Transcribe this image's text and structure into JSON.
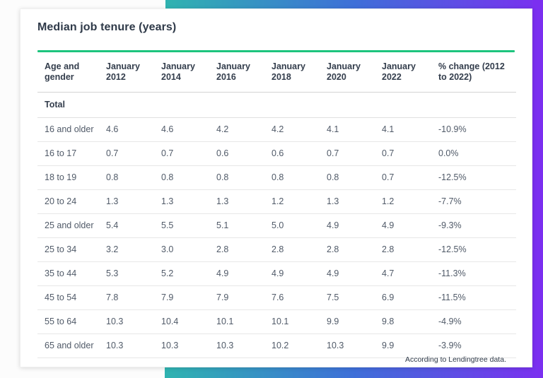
{
  "theme": {
    "gradient_start": "#2fb3b0",
    "gradient_mid": "#3e6fd8",
    "gradient_end": "#7b2ff0",
    "accent_green": "#1dc47e",
    "title_color": "#2f3a49",
    "body_text_color": "#505a68"
  },
  "chart_data": {
    "type": "table",
    "title": "Median job tenure (years)",
    "columns": [
      "Age and gender",
      "January 2012",
      "January 2014",
      "January 2016",
      "January 2018",
      "January 2020",
      "January 2022",
      "% change (2012 to 2022)"
    ],
    "section_label": "Total",
    "rows": [
      {
        "label": "16 and older",
        "values": [
          "4.6",
          "4.6",
          "4.2",
          "4.2",
          "4.1",
          "4.1",
          "-10.9%"
        ]
      },
      {
        "label": "16 to 17",
        "values": [
          "0.7",
          "0.7",
          "0.6",
          "0.6",
          "0.7",
          "0.7",
          "0.0%"
        ]
      },
      {
        "label": "18 to 19",
        "values": [
          "0.8",
          "0.8",
          "0.8",
          "0.8",
          "0.8",
          "0.7",
          "-12.5%"
        ]
      },
      {
        "label": "20 to 24",
        "values": [
          "1.3",
          "1.3",
          "1.3",
          "1.2",
          "1.3",
          "1.2",
          "-7.7%"
        ]
      },
      {
        "label": "25 and older",
        "values": [
          "5.4",
          "5.5",
          "5.1",
          "5.0",
          "4.9",
          "4.9",
          "-9.3%"
        ]
      },
      {
        "label": "25 to 34",
        "values": [
          "3.2",
          "3.0",
          "2.8",
          "2.8",
          "2.8",
          "2.8",
          "-12.5%"
        ]
      },
      {
        "label": "35 to 44",
        "values": [
          "5.3",
          "5.2",
          "4.9",
          "4.9",
          "4.9",
          "4.7",
          "-11.3%"
        ]
      },
      {
        "label": "45 to 54",
        "values": [
          "7.8",
          "7.9",
          "7.9",
          "7.6",
          "7.5",
          "6.9",
          "-11.5%"
        ]
      },
      {
        "label": "55 to 64",
        "values": [
          "10.3",
          "10.4",
          "10.1",
          "10.1",
          "9.9",
          "9.8",
          "-4.9%"
        ]
      },
      {
        "label": "65 and older",
        "values": [
          "10.3",
          "10.3",
          "10.3",
          "10.2",
          "10.3",
          "9.9",
          "-3.9%"
        ]
      }
    ],
    "attribution": "According to Lendingtree data."
  }
}
